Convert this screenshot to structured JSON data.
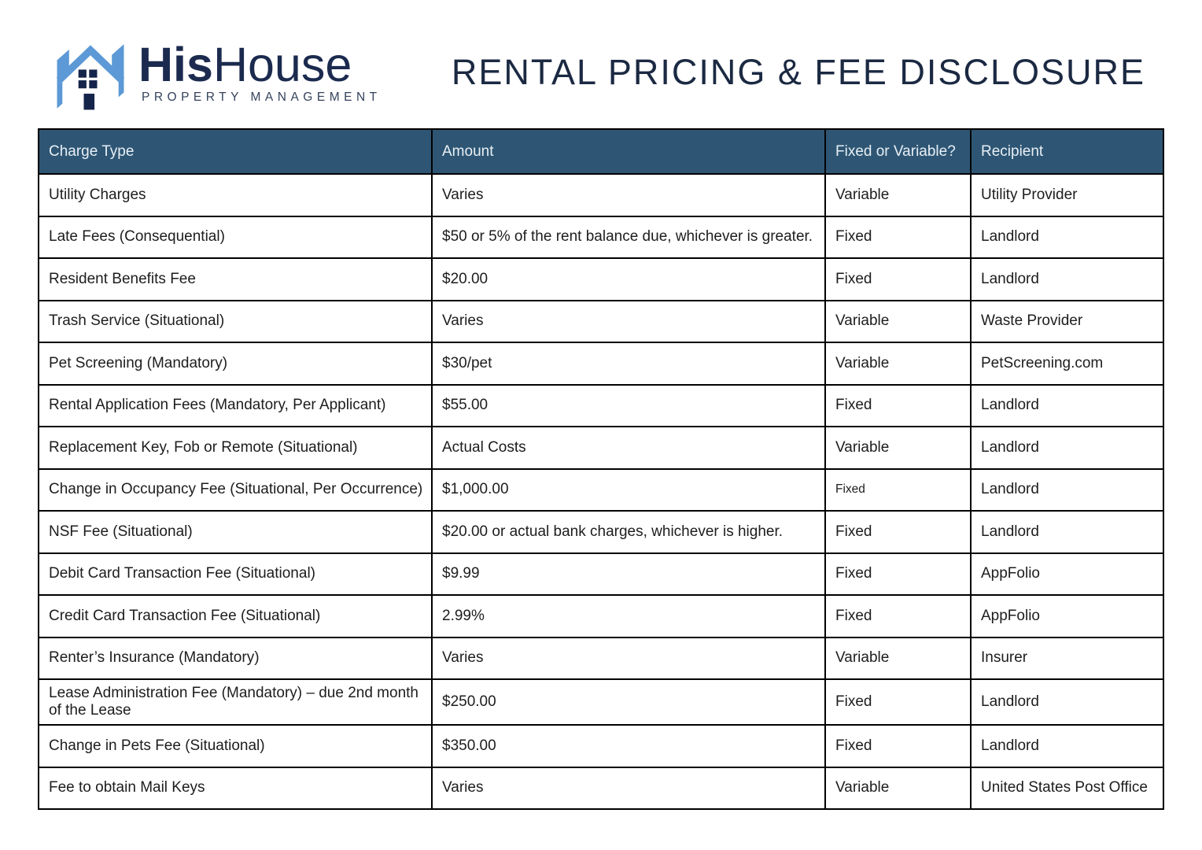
{
  "logo": {
    "brand_bold": "His",
    "brand_light": "House",
    "tagline": "PROPERTY MANAGEMENT",
    "icon": "house-h-icon",
    "colors": {
      "blue": "#5C99D6",
      "navy": "#1B2A4E"
    }
  },
  "title": "RENTAL PRICING & FEE DISCLOSURE",
  "title_color": "#1B2942",
  "table": {
    "header_bg": "#2E5674",
    "header_text_color": "#E8EFF5",
    "border_color": "#000000",
    "headers": [
      "Charge Type",
      "Amount",
      "Fixed or Variable?",
      "Recipient"
    ],
    "rows": [
      {
        "charge_type": "Utility Charges",
        "amount": "Varies",
        "fixed_or_variable": "Variable",
        "recipient": "Utility Provider"
      },
      {
        "charge_type": "Late Fees (Consequential)",
        "amount": "$50 or 5% of the rent balance due, whichever is greater.",
        "fixed_or_variable": "Fixed",
        "recipient": "Landlord"
      },
      {
        "charge_type": "Resident Benefits Fee",
        "amount": "$20.00",
        "fixed_or_variable": "Fixed",
        "recipient": "Landlord"
      },
      {
        "charge_type": "Trash Service (Situational)",
        "amount": "Varies",
        "fixed_or_variable": "Variable",
        "recipient": "Waste Provider"
      },
      {
        "charge_type": "Pet Screening (Mandatory)",
        "amount": "$30/pet",
        "fixed_or_variable": "Variable",
        "recipient": "PetScreening.com"
      },
      {
        "charge_type": "Rental Application Fees (Mandatory, Per Applicant)",
        "amount": "$55.00",
        "fixed_or_variable": "Fixed",
        "recipient": "Landlord"
      },
      {
        "charge_type": "Replacement Key, Fob or Remote (Situational)",
        "amount": "Actual Costs",
        "fixed_or_variable": "Variable",
        "recipient": "Landlord"
      },
      {
        "charge_type": "Change in Occupancy Fee (Situational, Per Occurrence)",
        "amount": "$1,000.00",
        "fixed_or_variable": "Fixed",
        "recipient": "Landlord",
        "fv_small": true
      },
      {
        "charge_type": "NSF Fee (Situational)",
        "amount": "$20.00 or actual bank charges, whichever is higher.",
        "fixed_or_variable": "Fixed",
        "recipient": "Landlord"
      },
      {
        "charge_type": "Debit Card Transaction Fee (Situational)",
        "amount": "$9.99",
        "fixed_or_variable": "Fixed",
        "recipient": "AppFolio"
      },
      {
        "charge_type": "Credit Card Transaction Fee (Situational)",
        "amount": "2.99%",
        "fixed_or_variable": "Fixed",
        "recipient": "AppFolio"
      },
      {
        "charge_type": "Renter’s Insurance (Mandatory)",
        "amount": "Varies",
        "fixed_or_variable": "Variable",
        "recipient": "Insurer"
      },
      {
        "charge_type": "Lease Administration Fee (Mandatory) – due 2nd month of the Lease",
        "amount": "$250.00",
        "fixed_or_variable": "Fixed",
        "recipient": "Landlord"
      },
      {
        "charge_type": "Change in Pets Fee (Situational)",
        "amount": "$350.00",
        "fixed_or_variable": "Fixed",
        "recipient": "Landlord"
      },
      {
        "charge_type": "Fee to obtain Mail Keys",
        "amount": "Varies",
        "fixed_or_variable": "Variable",
        "recipient": "United States Post Office"
      }
    ]
  }
}
